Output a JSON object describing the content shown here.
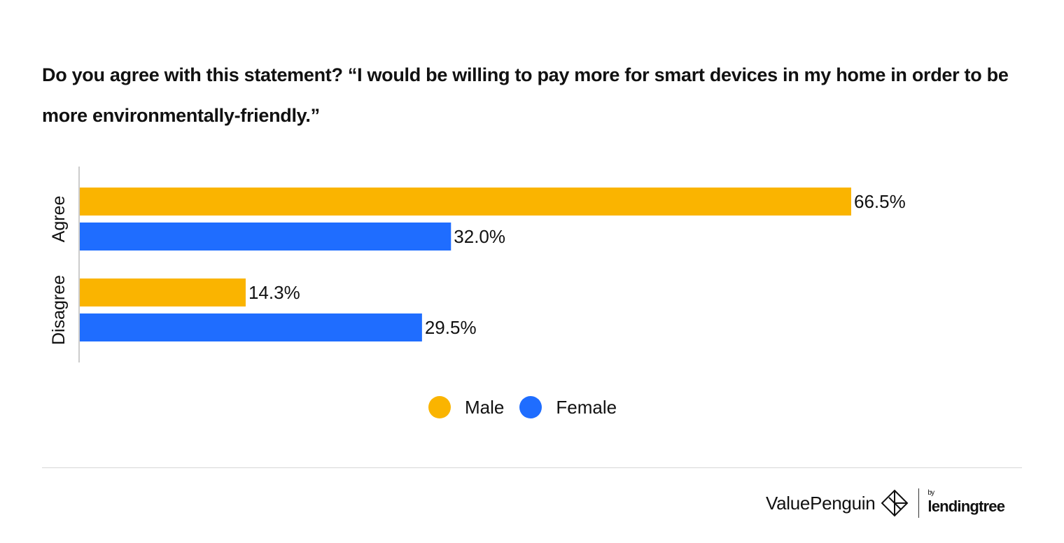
{
  "chart_data": {
    "type": "bar",
    "orientation": "horizontal",
    "title": "Do you agree with this statement? “I would be willing to pay more for smart devices in my home in order to be more environmentally-friendly.”",
    "categories": [
      "Agree",
      "Disagree"
    ],
    "series": [
      {
        "name": "Male",
        "values": [
          66.5,
          14.3
        ],
        "labels": [
          "66.5%",
          "14.3%"
        ],
        "color": "#FAB400"
      },
      {
        "name": "Female",
        "values": [
          32.0,
          29.5
        ],
        "labels": [
          "32.0%",
          "29.5%"
        ],
        "color": "#1F6DFF"
      }
    ],
    "unit": "%",
    "xlim": [
      0,
      100
    ],
    "grid": false,
    "legend_placement": "bottom-center"
  },
  "branding": {
    "logo_text": "ValuePenguin",
    "by_text": "by",
    "partner_text": "lendingtree"
  }
}
